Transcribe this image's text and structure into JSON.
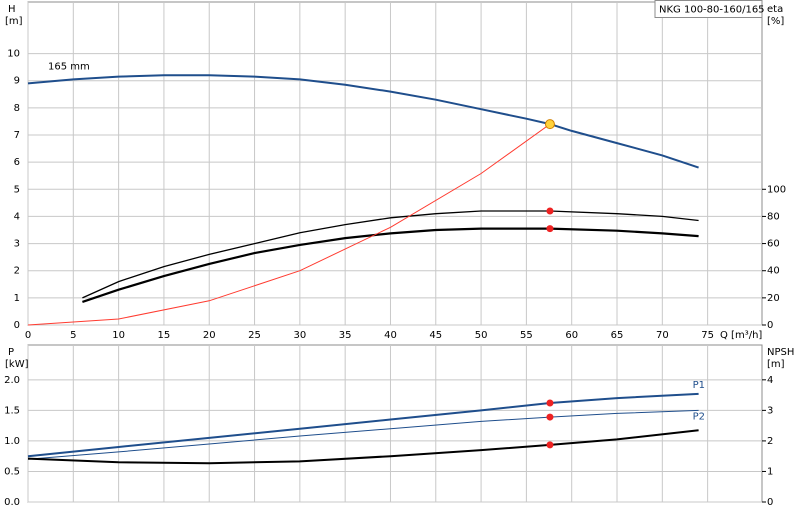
{
  "chart_data": [
    {
      "type": "line",
      "title": "NKG 100-80-160/165",
      "ylabel": "H",
      "yunit": "[m]",
      "y2label": "eta",
      "y2unit": "[%]",
      "xlabel": "Q [m³/h]",
      "xlim": [
        0,
        81
      ],
      "xticks": [
        0,
        5,
        10,
        15,
        20,
        25,
        30,
        35,
        40,
        45,
        50,
        55,
        60,
        65,
        70,
        75
      ],
      "ylim": [
        0,
        11.9
      ],
      "yticks": [
        0,
        1,
        2,
        3,
        4,
        5,
        6,
        7,
        8,
        9,
        10
      ],
      "y2lim": [
        0,
        238
      ],
      "y2ticks": [
        0,
        20,
        40,
        60,
        80,
        100
      ],
      "grid": true,
      "series": [
        {
          "name": "165 mm",
          "color": "#1f4e8c",
          "width": 2,
          "x": [
            0,
            5,
            10,
            15,
            20,
            25,
            30,
            35,
            40,
            45,
            50,
            55,
            57.6,
            60,
            65,
            70,
            74
          ],
          "values": [
            8.9,
            9.05,
            9.15,
            9.2,
            9.2,
            9.15,
            9.05,
            8.85,
            8.6,
            8.3,
            7.95,
            7.6,
            7.4,
            7.15,
            6.7,
            6.25,
            5.8
          ]
        },
        {
          "color": "#000000",
          "width": 1.3,
          "axis": "y2",
          "x": [
            6,
            10,
            15,
            20,
            25,
            30,
            35,
            40,
            45,
            50,
            57.6,
            65,
            70,
            74
          ],
          "values": [
            20,
            32,
            43,
            52,
            60,
            68,
            74,
            79,
            82,
            84,
            84,
            82,
            80,
            77
          ]
        },
        {
          "color": "#000000",
          "width": 2.2,
          "axis": "y2",
          "x": [
            6,
            10,
            15,
            20,
            25,
            30,
            35,
            40,
            45,
            50,
            57.6,
            65,
            70,
            74
          ],
          "values": [
            17,
            26,
            36,
            45,
            53,
            59,
            64,
            67.5,
            70,
            71,
            71,
            69.5,
            67.5,
            65.5
          ]
        },
        {
          "color": "#ff3b30",
          "width": 1,
          "x": [
            0,
            10,
            20,
            30,
            40,
            50,
            57.6
          ],
          "values": [
            0,
            0.22,
            0.89,
            2.0,
            3.6,
            5.58,
            7.4
          ]
        }
      ],
      "markers": [
        {
          "x": 57.6,
          "value": 84,
          "axis": "y2",
          "color": "#ee2222"
        },
        {
          "x": 57.6,
          "value": 71,
          "axis": "y2",
          "color": "#ee2222"
        },
        {
          "x": 57.6,
          "value": 7.4,
          "color": "#ffd23c"
        }
      ]
    },
    {
      "type": "line",
      "ylabel": "P",
      "yunit": "[kW]",
      "y2label": "NPSH",
      "y2unit": "[m]",
      "xlim": [
        0,
        81
      ],
      "xticks": [
        0,
        5,
        10,
        15,
        20,
        25,
        30,
        35,
        40,
        45,
        50,
        55,
        60,
        65,
        70,
        75
      ],
      "ylim": [
        0,
        2.57
      ],
      "yticks": [
        {
          "value": 0,
          "label": "0.0"
        },
        0.5,
        {
          "value": 1,
          "label": "1.0"
        },
        1.5,
        {
          "value": 2,
          "label": "2.0"
        }
      ],
      "y2lim": [
        0,
        5.14
      ],
      "y2ticks": [
        0,
        1,
        2,
        3,
        4
      ],
      "grid": true,
      "series": [
        {
          "name": "P1",
          "color": "#1f4e8c",
          "width": 2,
          "x": [
            0,
            10,
            20,
            30,
            40,
            50,
            57.6,
            65,
            74
          ],
          "values": [
            0.75,
            0.9,
            1.05,
            1.2,
            1.35,
            1.5,
            1.62,
            1.7,
            1.77
          ]
        },
        {
          "name": "P2",
          "color": "#1f4e8c",
          "width": 1,
          "x": [
            0,
            10,
            20,
            30,
            40,
            50,
            57.6,
            65,
            74
          ],
          "values": [
            0.7,
            0.82,
            0.95,
            1.08,
            1.2,
            1.32,
            1.39,
            1.45,
            1.5
          ]
        },
        {
          "color": "#000000",
          "width": 2,
          "axis": "y2",
          "x": [
            0,
            10,
            20,
            30,
            40,
            50,
            57.6,
            65,
            74
          ],
          "values": [
            1.42,
            1.3,
            1.27,
            1.33,
            1.5,
            1.7,
            1.87,
            2.05,
            2.35
          ]
        }
      ],
      "markers": [
        {
          "x": 57.6,
          "value": 1.62,
          "color": "#ee2222"
        },
        {
          "x": 57.6,
          "value": 1.39,
          "color": "#ee2222"
        },
        {
          "x": 57.6,
          "value": 1.87,
          "axis": "y2",
          "color": "#ee2222"
        }
      ]
    }
  ]
}
